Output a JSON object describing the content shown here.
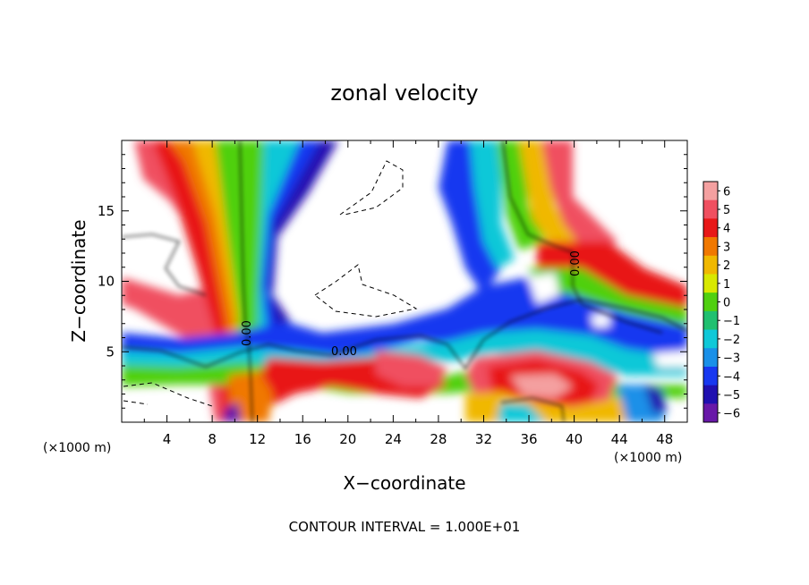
{
  "chart_data": {
    "type": "heatmap",
    "title": "zonal velocity",
    "xlabel": "X−coordinate",
    "ylabel": "Z−coordinate",
    "x_unit_left": "(×1000 m)",
    "x_unit_right": "(×1000 m)",
    "xlim": [
      0,
      50
    ],
    "ylim": [
      0,
      20
    ],
    "x_ticks": [
      4,
      8,
      12,
      16,
      20,
      24,
      28,
      32,
      36,
      40,
      44,
      48
    ],
    "y_ticks": [
      5,
      10,
      15
    ],
    "colorbar": {
      "levels": [
        6,
        5,
        4,
        3,
        2,
        1,
        0,
        -1,
        -2,
        -3,
        -4,
        -5,
        -6
      ],
      "labels": [
        "6",
        "5",
        "4",
        "3",
        "2",
        "1",
        "0",
        "−1",
        "−2",
        "−3",
        "−4",
        "−5",
        "−6"
      ],
      "colors": [
        "#f4a0a0",
        "#f05060",
        "#e81818",
        "#f07800",
        "#f0b800",
        "#d8e800",
        "#50d010",
        "#20c070",
        "#10c8d8",
        "#1a90e8",
        "#1838f0",
        "#2010b0",
        "#6818a8"
      ]
    },
    "contour_labels": [
      "0.00",
      "0.00",
      "0.00"
    ],
    "grid": false,
    "legend": "colorbar-right",
    "footer": "CONTOUR INTERVAL = 1.000E+01"
  }
}
